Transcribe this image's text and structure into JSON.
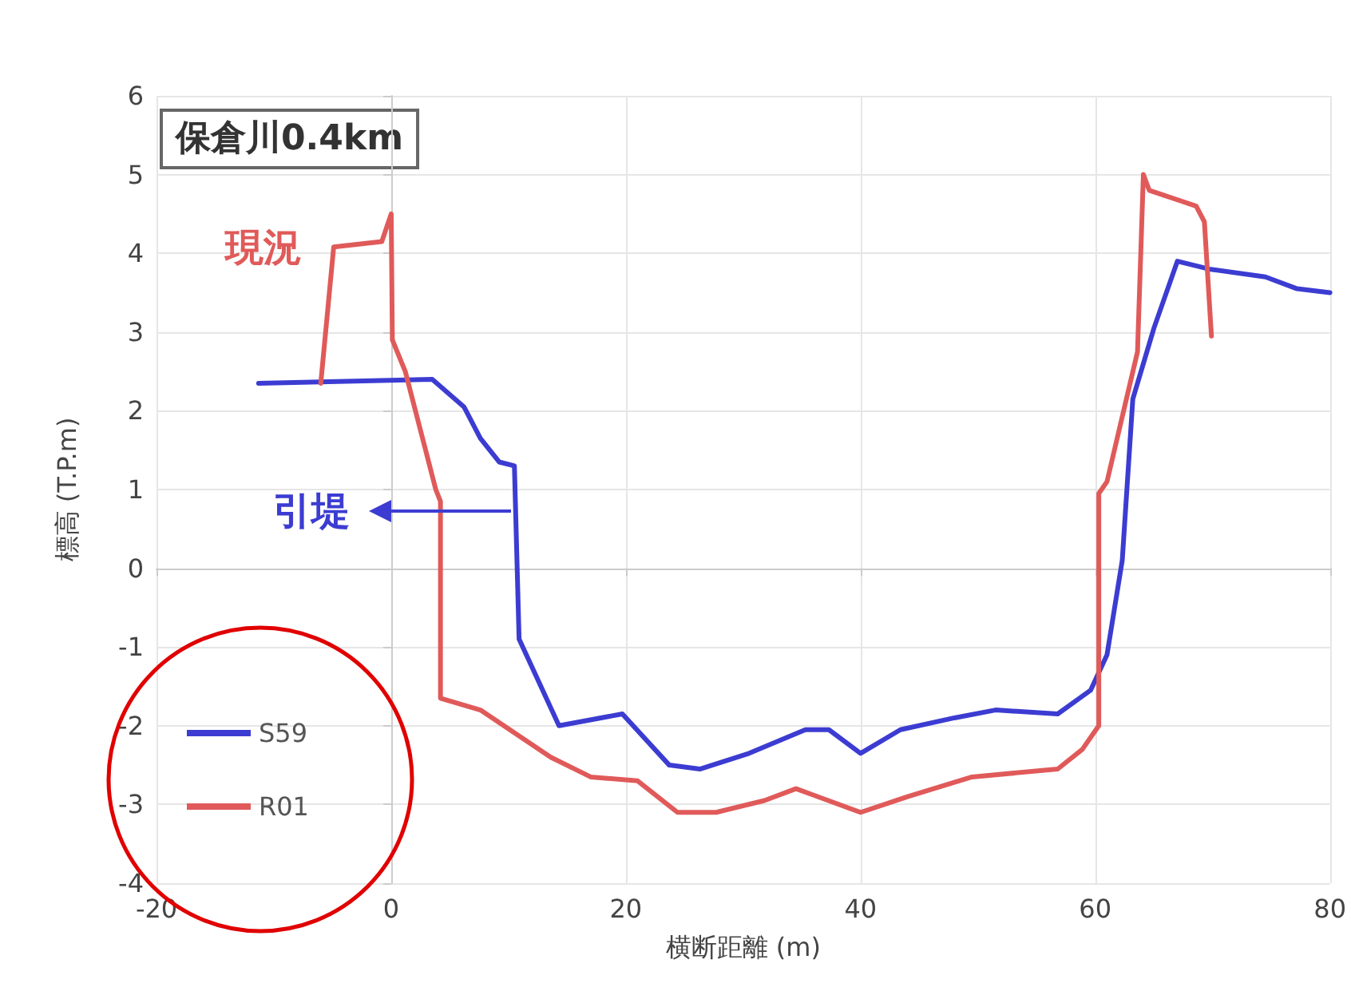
{
  "chart_data": {
    "type": "line",
    "xlabel": "横断距離 (m)",
    "ylabel": "標高 (T.P.m)",
    "xlim": [
      -20,
      80
    ],
    "xticks": [
      -20,
      0,
      20,
      40,
      60,
      80
    ],
    "ylim": [
      -4,
      6
    ],
    "yticks": [
      -4,
      -3,
      -2,
      -1,
      0,
      1,
      2,
      3,
      4,
      5,
      6
    ],
    "grid": true,
    "legend": "bottom left",
    "marker": "none",
    "line_style": "solid",
    "annotations": [
      "保倉川0.4km",
      "現況",
      "引堤"
    ],
    "series": [
      {
        "name": "S59",
        "color": "#3c3cd2",
        "x": [
          -11.3,
          3.5,
          6.2,
          7.6,
          9.2,
          10.5,
          10.9,
          14.3,
          19.7,
          23.7,
          26.3,
          30.5,
          35.3,
          37.3,
          40,
          43.4,
          48,
          51.5,
          56.8,
          59.6,
          61,
          62.3,
          63.2,
          65,
          67,
          69.7,
          74.5,
          77.2,
          80
        ],
        "values": [
          2.35,
          2.4,
          2.05,
          1.65,
          1.35,
          1.3,
          -0.9,
          -2.0,
          -1.85,
          -2.5,
          -2.55,
          -2.35,
          -2.05,
          -2.05,
          -2.35,
          -2.05,
          -1.9,
          -1.8,
          -1.85,
          -1.55,
          -1.1,
          0.1,
          2.15,
          3.05,
          3.9,
          3.8,
          3.7,
          3.55,
          3.5
        ]
      },
      {
        "name": "R01",
        "color": "#e05a5a",
        "x": [
          -6,
          -4.9,
          -0.8,
          0,
          0.1,
          1.2,
          3.8,
          4.2,
          4.2,
          7.6,
          13.6,
          17,
          21,
          24.4,
          27.7,
          31.8,
          34.5,
          40,
          44,
          49.5,
          56.8,
          58.9,
          60.3,
          60.3,
          61,
          63.6,
          64.1,
          64.6,
          68.6,
          69.3,
          69.9
        ],
        "values": [
          2.35,
          4.08,
          4.15,
          4.5,
          2.9,
          2.5,
          1.0,
          0.85,
          -1.65,
          -1.8,
          -2.4,
          -2.65,
          -2.7,
          -3.1,
          -3.1,
          -2.95,
          -2.8,
          -3.1,
          -2.9,
          -2.65,
          -2.55,
          -2.3,
          -2.0,
          0.95,
          1.1,
          2.75,
          5.0,
          4.8,
          4.6,
          4.4,
          2.95
        ]
      }
    ]
  }
}
